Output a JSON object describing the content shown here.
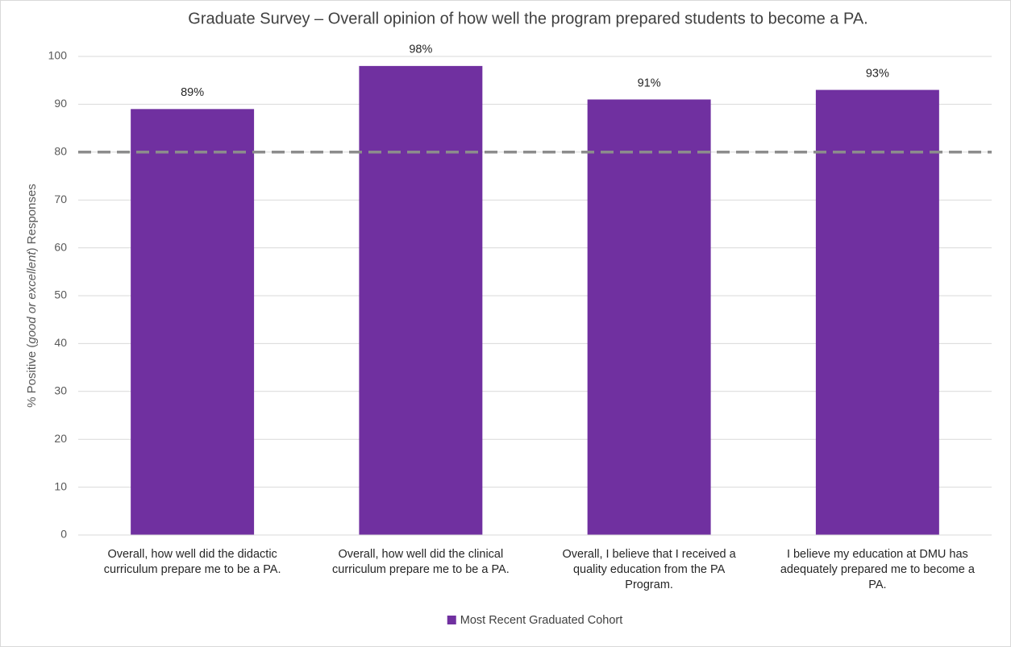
{
  "chart_data": {
    "type": "bar",
    "title": "Graduate Survey – Overall opinion of how well the program prepared students to become a PA.",
    "ylabel": [
      {
        "text": "% Positive (",
        "italic": false
      },
      {
        "text": "good or excellent",
        "italic": true
      },
      {
        "text": ") Responses",
        "italic": false
      }
    ],
    "categories": [
      "Overall, how well did the didactic curriculum prepare me to be a PA.",
      "Overall, how well did the clinical curriculum prepare me to be a PA.",
      "Overall, I believe that I received a quality education from the PA Program.",
      "I believe my education at DMU has adequately prepared me to become a PA."
    ],
    "series": [
      {
        "name": "Most Recent Graduated Cohort",
        "color": "#7030a0",
        "values": [
          89,
          98,
          91,
          93
        ],
        "value_labels": [
          "89%",
          "98%",
          "91%",
          "93%"
        ]
      }
    ],
    "ylim": [
      0,
      100
    ],
    "yticks": [
      0,
      10,
      20,
      30,
      40,
      50,
      60,
      70,
      80,
      90,
      100
    ],
    "grid": true,
    "reference_line": {
      "value": 80,
      "color": "#8c8c8c",
      "dashed": true
    },
    "legend": "bottom"
  }
}
